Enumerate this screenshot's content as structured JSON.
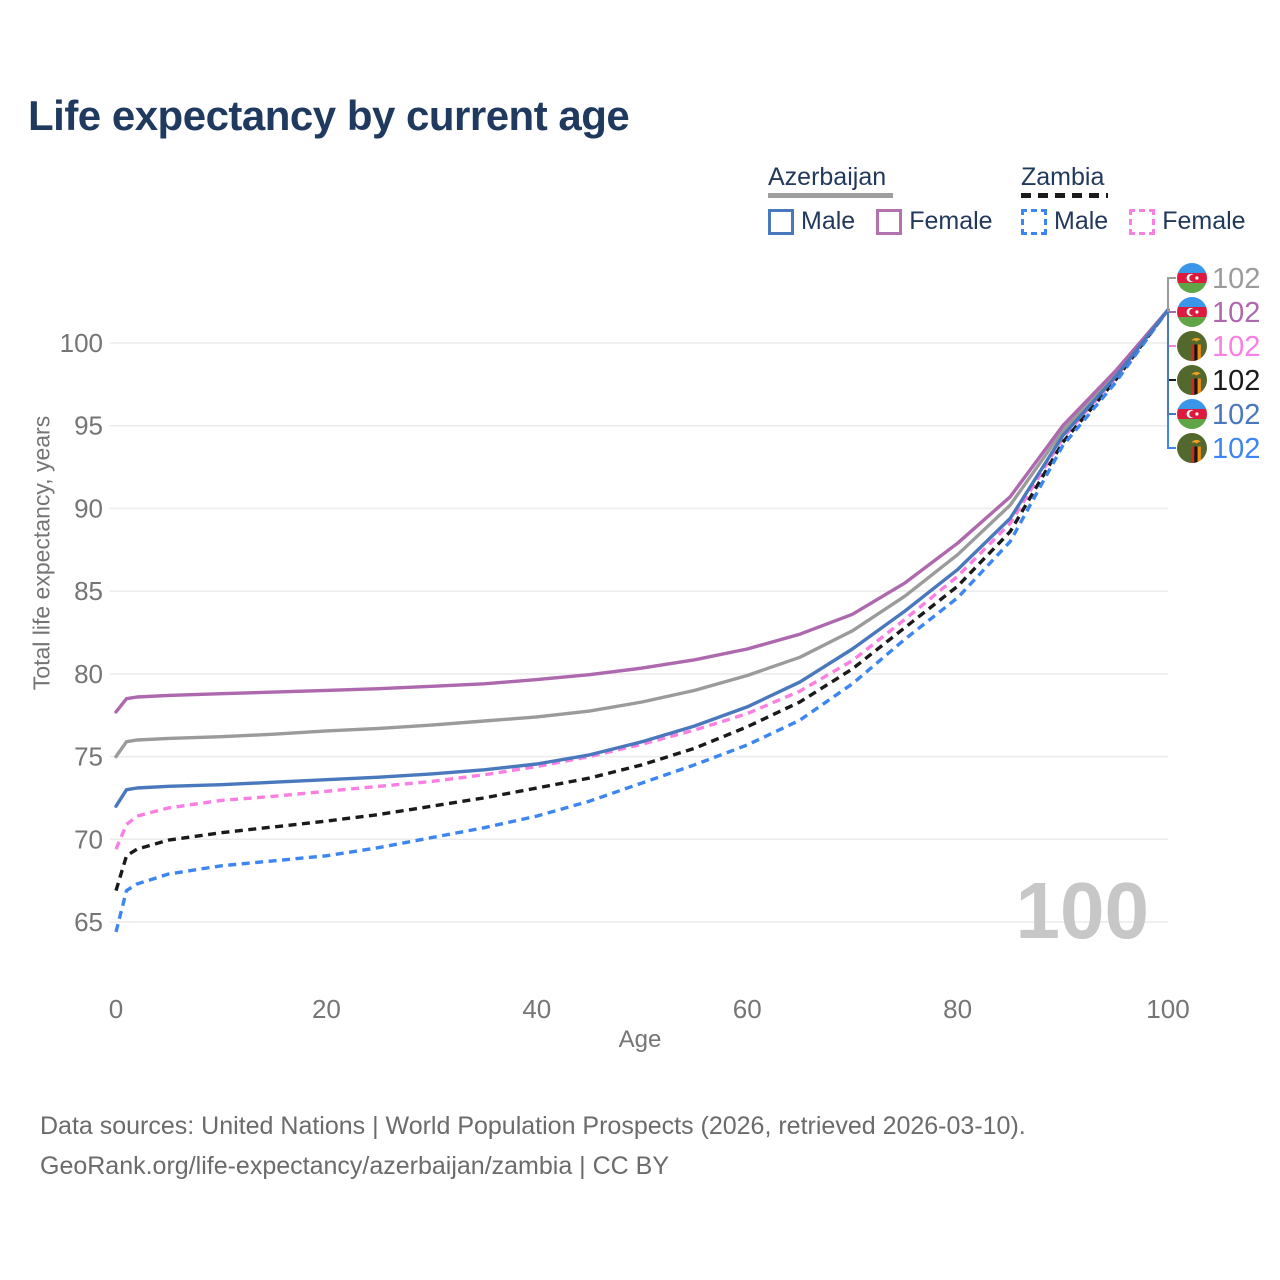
{
  "title": "Life expectancy by current age",
  "watermark": "100",
  "footer": {
    "line1": "Data sources: United Nations | World Population Prospects (2026, retrieved 2026-03-10).",
    "line2": "GeoRank.org/life-expectancy/azerbaijan/zambia | CC BY"
  },
  "legend": {
    "groups": [
      {
        "label": "Azerbaijan",
        "line_style": "solid",
        "underline_color": "#9e9e9e",
        "items": [
          {
            "label": "Male",
            "color": "#4a78bc",
            "style": "solid"
          },
          {
            "label": "Female",
            "color": "#b272b0",
            "style": "solid"
          }
        ]
      },
      {
        "label": "Zambia",
        "line_style": "dashed",
        "underline_color": "#1a1a1a",
        "items": [
          {
            "label": "Male",
            "color": "#3d86f2",
            "style": "dashed"
          },
          {
            "label": "Female",
            "color": "#fb7ee3",
            "style": "dashed"
          }
        ]
      }
    ]
  },
  "chart_data": {
    "type": "line",
    "title": "Life expectancy by current age",
    "xlabel": "Age",
    "ylabel": "Total life expectancy, years",
    "x_ticks": [
      0,
      20,
      40,
      60,
      80,
      100
    ],
    "y_ticks": [
      65,
      70,
      75,
      80,
      85,
      90,
      95,
      100
    ],
    "xlim": [
      0,
      100
    ],
    "ylim": [
      63.5,
      103.5
    ],
    "grid": "horizontal",
    "legend_position": "top-right",
    "axis_color": "#757575",
    "grid_color": "#ebebeb",
    "series": [
      {
        "name": "Zambia — Female",
        "country": "Zambia",
        "sex": "Female",
        "style": "dashed",
        "color": "#fb7ee3",
        "points": [
          [
            0,
            69.4
          ],
          [
            1,
            70.9
          ],
          [
            2,
            71.4
          ],
          [
            5,
            71.9
          ],
          [
            10,
            72.35
          ],
          [
            15,
            72.6
          ],
          [
            20,
            72.9
          ],
          [
            25,
            73.2
          ],
          [
            30,
            73.5
          ],
          [
            35,
            73.9
          ],
          [
            40,
            74.4
          ],
          [
            45,
            75.0
          ],
          [
            50,
            75.75
          ],
          [
            55,
            76.6
          ],
          [
            60,
            77.6
          ],
          [
            65,
            78.95
          ],
          [
            70,
            80.8
          ],
          [
            75,
            83.3
          ],
          [
            80,
            85.9
          ],
          [
            85,
            89.1
          ],
          [
            90,
            94.25
          ],
          [
            95,
            97.9
          ],
          [
            100,
            102
          ]
        ]
      },
      {
        "name": "Zambia — All",
        "country": "Zambia",
        "sex": "All",
        "style": "dashed",
        "color": "#1a1a1a",
        "points": [
          [
            0,
            66.9
          ],
          [
            1,
            69.0
          ],
          [
            2,
            69.4
          ],
          [
            5,
            69.95
          ],
          [
            10,
            70.4
          ],
          [
            15,
            70.75
          ],
          [
            20,
            71.1
          ],
          [
            25,
            71.5
          ],
          [
            30,
            72.0
          ],
          [
            35,
            72.5
          ],
          [
            40,
            73.1
          ],
          [
            45,
            73.7
          ],
          [
            50,
            74.5
          ],
          [
            55,
            75.5
          ],
          [
            60,
            76.8
          ],
          [
            65,
            78.3
          ],
          [
            70,
            80.3
          ],
          [
            75,
            82.8
          ],
          [
            80,
            85.3
          ],
          [
            85,
            88.6
          ],
          [
            90,
            94.0
          ],
          [
            95,
            97.75
          ],
          [
            100,
            102
          ]
        ]
      },
      {
        "name": "Zambia — Male",
        "country": "Zambia",
        "sex": "Male",
        "style": "dashed",
        "color": "#3d86f2",
        "points": [
          [
            0,
            64.4
          ],
          [
            1,
            66.9
          ],
          [
            2,
            67.3
          ],
          [
            5,
            67.9
          ],
          [
            10,
            68.4
          ],
          [
            15,
            68.7
          ],
          [
            20,
            69.0
          ],
          [
            25,
            69.5
          ],
          [
            30,
            70.1
          ],
          [
            35,
            70.7
          ],
          [
            40,
            71.4
          ],
          [
            45,
            72.3
          ],
          [
            50,
            73.4
          ],
          [
            55,
            74.5
          ],
          [
            60,
            75.7
          ],
          [
            65,
            77.2
          ],
          [
            70,
            79.4
          ],
          [
            75,
            82.1
          ],
          [
            80,
            84.6
          ],
          [
            85,
            88.0
          ],
          [
            90,
            93.8
          ],
          [
            95,
            97.6
          ],
          [
            100,
            102
          ]
        ]
      },
      {
        "name": "Azerbaijan — All",
        "country": "Azerbaijan",
        "sex": "All",
        "style": "solid",
        "color": "#9b9b9b",
        "points": [
          [
            0,
            75.0
          ],
          [
            1,
            75.9
          ],
          [
            2,
            76.0
          ],
          [
            5,
            76.1
          ],
          [
            10,
            76.2
          ],
          [
            15,
            76.35
          ],
          [
            20,
            76.55
          ],
          [
            25,
            76.7
          ],
          [
            30,
            76.9
          ],
          [
            35,
            77.15
          ],
          [
            40,
            77.4
          ],
          [
            45,
            77.75
          ],
          [
            50,
            78.3
          ],
          [
            55,
            79.0
          ],
          [
            60,
            79.9
          ],
          [
            65,
            81.0
          ],
          [
            70,
            82.6
          ],
          [
            75,
            84.7
          ],
          [
            80,
            87.2
          ],
          [
            85,
            90.2
          ],
          [
            90,
            94.7
          ],
          [
            95,
            98.1
          ],
          [
            100,
            102
          ]
        ]
      },
      {
        "name": "Azerbaijan — Female",
        "country": "Azerbaijan",
        "sex": "Female",
        "style": "solid",
        "color": "#ae68ad",
        "points": [
          [
            0,
            77.7
          ],
          [
            1,
            78.5
          ],
          [
            2,
            78.6
          ],
          [
            5,
            78.7
          ],
          [
            10,
            78.8
          ],
          [
            15,
            78.9
          ],
          [
            20,
            79.0
          ],
          [
            25,
            79.1
          ],
          [
            30,
            79.25
          ],
          [
            35,
            79.4
          ],
          [
            40,
            79.65
          ],
          [
            45,
            79.95
          ],
          [
            50,
            80.35
          ],
          [
            55,
            80.85
          ],
          [
            60,
            81.5
          ],
          [
            65,
            82.4
          ],
          [
            70,
            83.6
          ],
          [
            75,
            85.5
          ],
          [
            80,
            87.9
          ],
          [
            85,
            90.7
          ],
          [
            90,
            95.0
          ],
          [
            95,
            98.3
          ],
          [
            100,
            102
          ]
        ]
      },
      {
        "name": "Azerbaijan — Male",
        "country": "Azerbaijan",
        "sex": "Male",
        "style": "solid",
        "color": "#4a78bc",
        "points": [
          [
            0,
            72.0
          ],
          [
            1,
            73.0
          ],
          [
            2,
            73.1
          ],
          [
            5,
            73.2
          ],
          [
            10,
            73.3
          ],
          [
            15,
            73.45
          ],
          [
            20,
            73.6
          ],
          [
            25,
            73.75
          ],
          [
            30,
            73.95
          ],
          [
            35,
            74.2
          ],
          [
            40,
            74.55
          ],
          [
            45,
            75.1
          ],
          [
            50,
            75.9
          ],
          [
            55,
            76.85
          ],
          [
            60,
            78.0
          ],
          [
            65,
            79.5
          ],
          [
            70,
            81.5
          ],
          [
            75,
            83.8
          ],
          [
            80,
            86.3
          ],
          [
            85,
            89.4
          ],
          [
            90,
            94.4
          ],
          [
            95,
            97.95
          ],
          [
            100,
            102
          ]
        ]
      }
    ],
    "end_labels": [
      {
        "flag": "az",
        "country": "Azerbaijan",
        "series": "Azerbaijan — All",
        "value": "102",
        "color": "#9b9b9b"
      },
      {
        "flag": "az",
        "country": "Azerbaijan",
        "series": "Azerbaijan — Female",
        "value": "102",
        "color": "#ae68ad"
      },
      {
        "flag": "zm",
        "country": "Zambia",
        "series": "Zambia — Female",
        "value": "102",
        "color": "#fb7ee3"
      },
      {
        "flag": "zm",
        "country": "Zambia",
        "series": "Zambia — All",
        "value": "102",
        "color": "#1a1a1a"
      },
      {
        "flag": "az",
        "country": "Azerbaijan",
        "series": "Azerbaijan — Male",
        "value": "102",
        "color": "#4a78bc"
      },
      {
        "flag": "zm",
        "country": "Zambia",
        "series": "Zambia — Male",
        "value": "102",
        "color": "#3d86f2"
      }
    ]
  }
}
